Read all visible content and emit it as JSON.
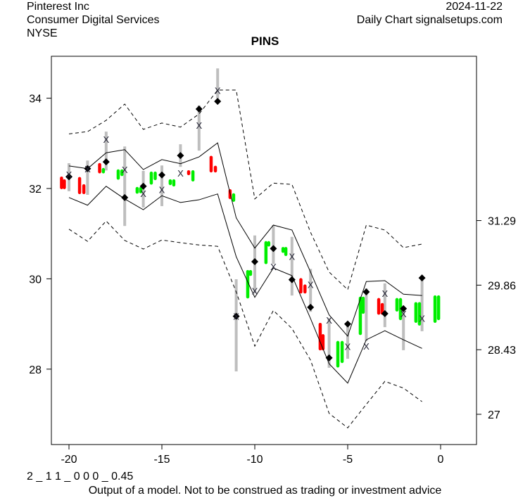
{
  "header": {
    "company": "Pinterest Inc",
    "sector": "Consumer Digital Services",
    "exchange": "NYSE",
    "date": "2024-11-22",
    "source": "Daily Chart signalsetups.com"
  },
  "footer": {
    "code": "2 _ 1 1 _ 0 0 0 _ 0.45",
    "disclaimer": "Output of a model. Not to be construed as trading or investment advice"
  },
  "chart_data": {
    "type": "line",
    "title": "PINS",
    "xlim": [
      -21,
      2
    ],
    "ylim": [
      26.0,
      34.7
    ],
    "x_ticks": [
      -20,
      -15,
      -10,
      -5,
      0
    ],
    "y_ticks_left": [
      28,
      30,
      32,
      34
    ],
    "y_ticks_right": [
      {
        "value": 31.29,
        "label": "31.29"
      },
      {
        "value": 29.86,
        "label": "29.86"
      },
      {
        "value": 28.43,
        "label": "28.43"
      },
      {
        "value": 27.0,
        "label": "27"
      }
    ],
    "colors": {
      "up": "#00ee00",
      "down": "#ff0000",
      "range": "#bebebe",
      "line": "#000000"
    },
    "x": [
      -20,
      -19,
      -18,
      -17,
      -16,
      -15,
      -14,
      -13,
      -12,
      -11,
      -10,
      -9,
      -8,
      -7,
      -6,
      -5,
      -4,
      -3,
      -2,
      -1
    ],
    "upper_dashed": [
      33.21,
      33.26,
      33.51,
      33.87,
      33.31,
      33.45,
      33.36,
      33.65,
      34.18,
      34.18,
      31.77,
      32.12,
      32.09,
      31.03,
      30.15,
      29.76,
      31.19,
      31.08,
      30.69,
      30.77
    ],
    "upper_solid": [
      32.5,
      32.44,
      32.79,
      32.86,
      32.42,
      32.64,
      32.55,
      32.7,
      33.01,
      31.35,
      30.68,
      31.19,
      31.08,
      30.15,
      29.2,
      28.73,
      29.94,
      29.96,
      29.66,
      29.63
    ],
    "lower_solid": [
      31.8,
      31.63,
      32.05,
      31.77,
      31.53,
      31.84,
      31.69,
      31.75,
      31.88,
      30.49,
      29.59,
      30.24,
      30.07,
      29.12,
      28.12,
      27.69,
      28.65,
      28.85,
      28.65,
      28.46
    ],
    "lower_dashed": [
      31.1,
      30.83,
      31.28,
      30.85,
      30.66,
      30.86,
      30.8,
      30.75,
      30.72,
      29.71,
      28.51,
      29.3,
      28.9,
      28.2,
      27.02,
      26.7,
      27.22,
      27.73,
      27.58,
      27.28
    ],
    "range_high": [
      32.56,
      32.62,
      33.26,
      32.93,
      32.39,
      32.51,
      32.98,
      33.84,
      34.66,
      29.99,
      30.96,
      31.19,
      30.93,
      30.22,
      29.13,
      29.0,
      29.79,
      29.9,
      29.37,
      30.07
    ],
    "range_low": [
      31.94,
      31.86,
      32.4,
      31.17,
      31.58,
      31.61,
      32.48,
      32.84,
      33.99,
      27.95,
      29.68,
      30.33,
      29.63,
      29.27,
      28.03,
      28.23,
      28.62,
      28.93,
      28.42,
      28.84
    ],
    "x_marker": [
      32.31,
      32.44,
      33.09,
      32.42,
      31.89,
      31.98,
      32.34,
      33.4,
      34.17,
      29.17,
      29.73,
      30.27,
      30.5,
      29.87,
      29.09,
      28.5,
      28.51,
      29.68,
      29.23,
      29.13
    ],
    "diamond_marker": [
      32.26,
      32.44,
      32.59,
      31.8,
      32.05,
      32.3,
      32.73,
      33.76,
      33.93,
      29.17,
      30.38,
      30.67,
      29.98,
      29.37,
      28.25,
      29.0,
      29.71,
      29.23,
      29.34,
      30.02
    ],
    "bars": [
      {
        "x": -20.4,
        "hi": 32.23,
        "lo": 32.02,
        "dir": "down"
      },
      {
        "x": -20.25,
        "hi": 32.17,
        "lo": 32.02,
        "dir": "down"
      },
      {
        "x": -19.43,
        "hi": 32.22,
        "lo": 31.91,
        "dir": "down"
      },
      {
        "x": -19.2,
        "hi": 32.06,
        "lo": 31.91,
        "dir": "down"
      },
      {
        "x": -18.35,
        "hi": 32.53,
        "lo": 32.37,
        "dir": "down"
      },
      {
        "x": -18.15,
        "hi": 32.42,
        "lo": 32.37,
        "dir": "up"
      },
      {
        "x": -17.35,
        "hi": 32.39,
        "lo": 32.23,
        "dir": "up"
      },
      {
        "x": -17.15,
        "hi": 32.39,
        "lo": 32.31,
        "dir": "up"
      },
      {
        "x": -16.33,
        "hi": 32.0,
        "lo": 31.92,
        "dir": "up"
      },
      {
        "x": -16.14,
        "hi": 32.0,
        "lo": 31.93,
        "dir": "up"
      },
      {
        "x": -15.57,
        "hi": 32.34,
        "lo": 32.12,
        "dir": "up"
      },
      {
        "x": -15.36,
        "hi": 32.34,
        "lo": 32.22,
        "dir": "up"
      },
      {
        "x": -14.55,
        "hi": 32.17,
        "lo": 32.11,
        "dir": "up"
      },
      {
        "x": -14.36,
        "hi": 32.17,
        "lo": 32.08,
        "dir": "up"
      },
      {
        "x": -13.56,
        "hi": 32.37,
        "lo": 32.33,
        "dir": "down"
      },
      {
        "x": -13.33,
        "hi": 32.37,
        "lo": 32.19,
        "dir": "up"
      },
      {
        "x": -12.35,
        "hi": 32.69,
        "lo": 32.39,
        "dir": "down"
      },
      {
        "x": -12.12,
        "hi": 32.47,
        "lo": 32.39,
        "dir": "down"
      },
      {
        "x": -11.33,
        "hi": 31.95,
        "lo": 31.8,
        "dir": "down"
      },
      {
        "x": -11.14,
        "hi": 31.86,
        "lo": 31.74,
        "dir": "up"
      },
      {
        "x": -10.38,
        "hi": 30.16,
        "lo": 29.6,
        "dir": "up"
      },
      {
        "x": -10.23,
        "hi": 30.16,
        "lo": 30.1,
        "dir": "up"
      },
      {
        "x": -9.4,
        "hi": 30.8,
        "lo": 30.36,
        "dir": "up"
      },
      {
        "x": -9.25,
        "hi": 30.8,
        "lo": 30.75,
        "dir": "up"
      },
      {
        "x": -8.48,
        "hi": 30.67,
        "lo": 30.61,
        "dir": "up"
      },
      {
        "x": -8.33,
        "hi": 30.67,
        "lo": 30.54,
        "dir": "up"
      },
      {
        "x": -7.52,
        "hi": 29.98,
        "lo": 29.71,
        "dir": "down"
      },
      {
        "x": -7.3,
        "hi": 29.84,
        "lo": 29.71,
        "dir": "down"
      },
      {
        "x": -6.48,
        "hi": 28.99,
        "lo": 28.45,
        "dir": "down"
      },
      {
        "x": -6.33,
        "hi": 28.74,
        "lo": 28.45,
        "dir": "down"
      },
      {
        "x": -5.53,
        "hi": 28.59,
        "lo": 28.07,
        "dir": "up"
      },
      {
        "x": -5.3,
        "hi": 28.59,
        "lo": 28.17,
        "dir": "up"
      },
      {
        "x": -4.32,
        "hi": 29.57,
        "lo": 28.79,
        "dir": "up"
      },
      {
        "x": -4.17,
        "hi": 29.57,
        "lo": 29.26,
        "dir": "up"
      },
      {
        "x": -3.33,
        "hi": 29.54,
        "lo": 29.24,
        "dir": "down"
      },
      {
        "x": -3.14,
        "hi": 29.43,
        "lo": 29.24,
        "dir": "down"
      },
      {
        "x": -2.35,
        "hi": 29.54,
        "lo": 29.31,
        "dir": "up"
      },
      {
        "x": -2.16,
        "hi": 29.54,
        "lo": 29.12,
        "dir": "up"
      },
      {
        "x": -1.33,
        "hi": 29.45,
        "lo": 29.06,
        "dir": "up"
      },
      {
        "x": -1.14,
        "hi": 29.45,
        "lo": 29.0,
        "dir": "up"
      },
      {
        "x": -0.3,
        "hi": 29.6,
        "lo": 29.06,
        "dir": "up"
      },
      {
        "x": -0.11,
        "hi": 29.6,
        "lo": 29.12,
        "dir": "up"
      }
    ]
  }
}
